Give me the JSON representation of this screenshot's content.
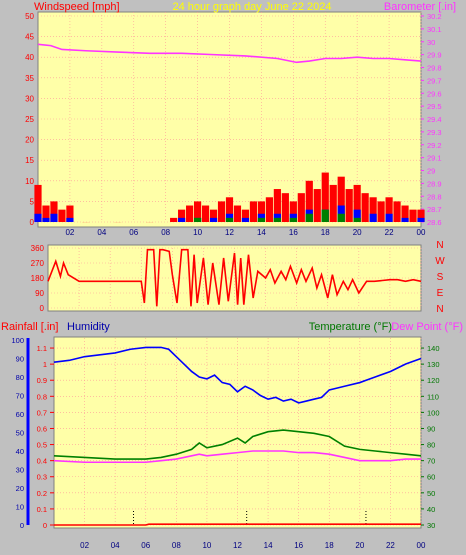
{
  "header": {
    "windspeed_label": "Windspeed [mph]",
    "title": "24 hour graph day   June 22 2024",
    "barometer_label": "Barometer [.in]"
  },
  "direction_labels": [
    "N",
    "W",
    "S",
    "E",
    "N"
  ],
  "bottom_header": {
    "rainfall_label": "Rainfall [.in]",
    "humidity_label": "Humidity",
    "temperature_label": "Temperature (°F)",
    "dewpoint_label": "Dew Point (°F)"
  },
  "colors": {
    "panel_bg": "#ffffa8",
    "frame_bg": "#c0c0c0",
    "red": "#ff0000",
    "magenta": "#ff33ff",
    "blue": "#0000ff",
    "green": "#008000",
    "temp_axis": "#007700",
    "dark_blue": "#0000aa",
    "title_yellow": "#ffff00",
    "grid": "#ff9999"
  },
  "chart_data": [
    {
      "type": "line",
      "name": "wind-barometer",
      "x_tick_labels": [
        "02",
        "04",
        "06",
        "08",
        "10",
        "12",
        "14",
        "16",
        "18",
        "20",
        "22",
        "00"
      ],
      "xlim": [
        0,
        24
      ],
      "y_left_ticks": [
        "0",
        "5",
        "10",
        "15",
        "20",
        "25",
        "30",
        "35",
        "40",
        "45",
        "50"
      ],
      "ylim_left": [
        0,
        50
      ],
      "y_right_ticks": [
        "28.6",
        "28.7",
        "28.8",
        "28.9",
        "29",
        "29.1",
        "29.2",
        "29.3",
        "29.4",
        "29.5",
        "29.6",
        "29.7",
        "29.8",
        "29.9",
        "30",
        "30.1",
        "30.2"
      ],
      "ylim_right": [
        28.6,
        30.2
      ],
      "series": [
        {
          "axis": "right",
          "color": "magenta",
          "style": "line",
          "x": [
            0,
            0.8,
            1.5,
            3,
            5,
            7,
            9,
            11,
            13,
            15,
            16.2,
            17,
            18,
            19,
            20,
            21,
            22,
            23,
            24
          ],
          "values": [
            29.98,
            29.97,
            29.94,
            29.93,
            29.92,
            29.91,
            29.91,
            29.9,
            29.89,
            29.87,
            29.84,
            29.85,
            29.87,
            29.87,
            29.88,
            29.87,
            29.87,
            29.86,
            29.85
          ]
        },
        {
          "axis": "left",
          "color": "red",
          "style": "bars",
          "name": "gust",
          "x": [
            0,
            0.5,
            1,
            1.5,
            2,
            3,
            5,
            7,
            8.5,
            9,
            9.5,
            10,
            10.5,
            11,
            11.5,
            12,
            12.5,
            13,
            13.5,
            14,
            14.5,
            15,
            15.5,
            16,
            16.5,
            17,
            17.5,
            18,
            18.5,
            19,
            19.5,
            20,
            20.5,
            21,
            21.5,
            22,
            22.5,
            23,
            23.5,
            24
          ],
          "values": [
            9,
            4,
            5,
            3,
            4,
            0,
            0,
            0,
            1,
            3,
            4,
            5,
            4,
            3,
            5,
            6,
            4,
            3,
            5,
            5,
            6,
            8,
            7,
            5,
            7,
            10,
            8,
            12,
            9,
            11,
            8,
            9,
            7,
            6,
            5,
            6,
            5,
            4,
            3,
            3
          ]
        },
        {
          "axis": "left",
          "color": "blue",
          "style": "bars",
          "name": "speed",
          "x": [
            0,
            0.5,
            1,
            2,
            9,
            10,
            11,
            12,
            13,
            14,
            15,
            16,
            17,
            18,
            19,
            20,
            21,
            22,
            23,
            24
          ],
          "values": [
            2,
            1,
            2,
            1,
            1,
            1,
            1,
            2,
            1,
            2,
            2,
            2,
            3,
            3,
            4,
            3,
            2,
            2,
            1,
            1
          ]
        },
        {
          "axis": "left",
          "color": "green",
          "style": "bars",
          "name": "average",
          "x": [
            10,
            12,
            14,
            15,
            16,
            17,
            18,
            19,
            20
          ],
          "values": [
            1,
            1,
            1,
            1,
            1,
            2,
            3,
            2,
            1
          ]
        }
      ]
    },
    {
      "type": "line",
      "name": "wind-direction",
      "xlim": [
        0,
        24
      ],
      "y_ticks": [
        "360",
        "270",
        "180",
        "90",
        "0"
      ],
      "ylim": [
        0,
        360
      ],
      "series": [
        {
          "color": "red",
          "x": [
            0,
            0.5,
            0.8,
            1.0,
            1.3,
            2,
            3,
            5,
            6,
            6.2,
            6.4,
            6.8,
            7,
            7.2,
            7.4,
            7.8,
            8,
            8.3,
            8.6,
            9,
            9.2,
            9.4,
            9.6,
            10,
            10.3,
            10.6,
            11,
            11.3,
            11.6,
            12,
            12.2,
            12.4,
            12.6,
            12.9,
            13.2,
            13.5,
            14,
            14.3,
            14.6,
            15,
            15.3,
            15.6,
            16,
            16.3,
            16.6,
            17,
            17.3,
            17.6,
            18,
            18.3,
            18.6,
            19,
            19.3,
            19.6,
            20,
            20.5,
            21,
            22,
            22.5,
            23,
            23.5,
            24
          ],
          "values": [
            160,
            280,
            190,
            270,
            200,
            160,
            160,
            160,
            160,
            30,
            350,
            350,
            10,
            350,
            350,
            340,
            200,
            30,
            350,
            350,
            10,
            320,
            30,
            300,
            20,
            270,
            20,
            300,
            40,
            330,
            20,
            300,
            20,
            320,
            60,
            220,
            180,
            230,
            150,
            220,
            170,
            250,
            150,
            230,
            160,
            240,
            120,
            200,
            60,
            200,
            80,
            160,
            110,
            170,
            90,
            160,
            160,
            170,
            170,
            160,
            170,
            160
          ]
        }
      ]
    },
    {
      "type": "line",
      "name": "humidity-temperature-rain",
      "x_tick_labels": [
        "02",
        "04",
        "06",
        "08",
        "10",
        "12",
        "14",
        "16",
        "18",
        "20",
        "22",
        "00"
      ],
      "xlim": [
        0,
        24
      ],
      "y_left_ticks_humidity": [
        "0",
        "10",
        "20",
        "30",
        "40",
        "50",
        "60",
        "70",
        "80",
        "90",
        "100"
      ],
      "y_left_ticks_rain": [
        "0",
        "0.1",
        "0.2",
        "0.3",
        "0.4",
        "0.5",
        "0.6",
        "0.7",
        "0.8",
        "0.9",
        "1",
        "1.1"
      ],
      "ylim_humidity": [
        0,
        100
      ],
      "ylim_rain": [
        0,
        1.15
      ],
      "y_right_ticks": [
        "30",
        "40",
        "50",
        "60",
        "70",
        "80",
        "90",
        "100",
        "110",
        "120",
        "130",
        "140"
      ],
      "ylim_right": [
        30,
        145
      ],
      "rain_markers_x": [
        5.2,
        12.6,
        20.4
      ],
      "series": [
        {
          "axis": "humidity",
          "color": "blue",
          "x": [
            0,
            1,
            2,
            3,
            4,
            5,
            6,
            7,
            7.5,
            8,
            8.5,
            9,
            9.5,
            10,
            10.5,
            11,
            11.5,
            12,
            12.5,
            13,
            13.5,
            14,
            14.5,
            15,
            15.5,
            16,
            16.5,
            17,
            17.5,
            18,
            18.5,
            19,
            20,
            21,
            22,
            23,
            24
          ],
          "values": [
            88,
            89,
            91,
            92,
            93,
            95,
            96,
            96,
            95,
            91,
            87,
            83,
            80,
            79,
            81,
            77,
            76,
            72,
            75,
            73,
            70,
            68,
            69,
            67,
            68,
            66,
            67,
            68,
            69,
            73,
            74,
            75,
            77,
            80,
            83,
            87,
            90
          ]
        },
        {
          "axis": "right",
          "color": "green",
          "x": [
            0,
            2,
            4,
            6,
            7,
            8,
            9,
            9.5,
            10,
            11,
            12,
            12.5,
            13,
            14,
            15,
            16,
            17,
            18,
            19,
            20,
            21,
            22,
            23,
            24
          ],
          "values": [
            73,
            72,
            71,
            71,
            72,
            74,
            77,
            81,
            78,
            80,
            84,
            81,
            85,
            88,
            89,
            88,
            87,
            85,
            79,
            77,
            76,
            75,
            74,
            73
          ]
        },
        {
          "axis": "right",
          "color": "magenta",
          "x": [
            0,
            2,
            4,
            6,
            7,
            8,
            9,
            9.5,
            10,
            11,
            12,
            13,
            14,
            15,
            16,
            17,
            18,
            19,
            20,
            21,
            22,
            23,
            24
          ],
          "values": [
            70,
            69,
            69,
            69,
            70,
            71,
            73,
            74,
            73,
            74,
            75,
            76,
            76,
            76,
            75,
            75,
            74,
            72,
            70,
            70,
            70,
            71,
            71
          ]
        },
        {
          "axis": "rain",
          "color": "red",
          "x": [
            0,
            6,
            6.2,
            24
          ],
          "values": [
            0,
            0,
            0.005,
            0.005
          ]
        }
      ]
    }
  ]
}
